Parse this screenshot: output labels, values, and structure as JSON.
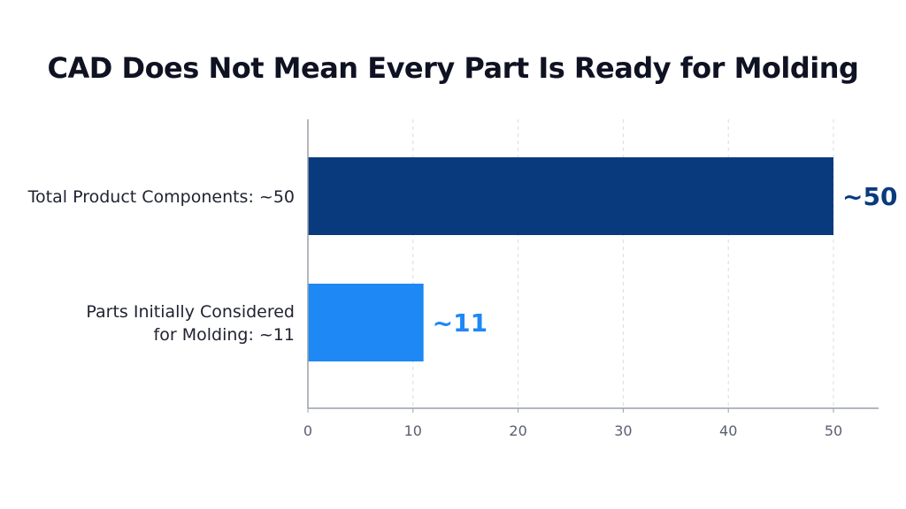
{
  "chart_data": {
    "type": "bar",
    "orientation": "horizontal",
    "title": "CAD Does Not Mean Every Part Is Ready for Molding",
    "xlabel": "",
    "ylabel": "",
    "xlim": [
      0,
      55
    ],
    "ticks": [
      0,
      10,
      20,
      30,
      40,
      50
    ],
    "tick_labels": [
      "0",
      "10",
      "20",
      "30",
      "40",
      "50"
    ],
    "grid": true,
    "legend": "none",
    "categories": [
      [
        "Total Product Components: ~50"
      ],
      [
        "Parts Initially Considered",
        "for Molding: ~11"
      ]
    ],
    "values": [
      50,
      11
    ],
    "data_labels": [
      "~50",
      "~11"
    ],
    "colors": [
      "#0a3a7e",
      "#1e88f5"
    ],
    "axis_color": "#9aa0a8",
    "grid_color": "#d8dce2"
  }
}
